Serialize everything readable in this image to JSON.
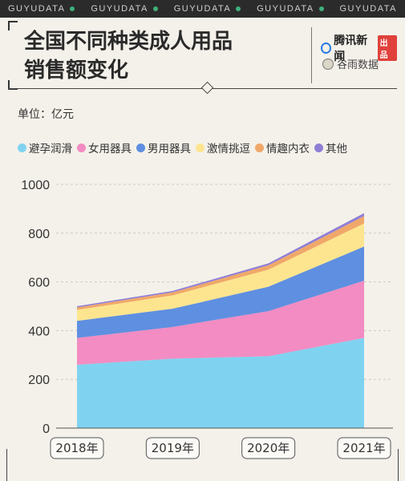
{
  "topbar": {
    "items": [
      "GUYUDATA",
      "GUYUDATA",
      "GUYUDATA",
      "GUYUDATA",
      "GUYUDATA"
    ]
  },
  "header": {
    "title": "全国不同种类成人用品\n销售额变化",
    "brand1": "腾讯新闻",
    "brand1_tag": "出品",
    "brand2": "谷雨数据"
  },
  "chart_data": {
    "type": "area",
    "stacked": true,
    "unit_label": "单位：亿元",
    "x": [
      "2018年",
      "2019年",
      "2020年",
      "2021年"
    ],
    "ylim": [
      0,
      1000
    ],
    "yticks": [
      0,
      200,
      400,
      600,
      800,
      1000
    ],
    "grid": true,
    "legend_position": "top",
    "series": [
      {
        "name": "避孕润滑",
        "color": "#7fd3f0",
        "values": [
          260,
          285,
          295,
          370
        ]
      },
      {
        "name": "女用器具",
        "color": "#f28cc3",
        "values": [
          110,
          130,
          185,
          235
        ]
      },
      {
        "name": "男用器具",
        "color": "#5f8fe0",
        "values": [
          70,
          75,
          100,
          140
        ]
      },
      {
        "name": "激情挑逗",
        "color": "#fde58f",
        "values": [
          45,
          55,
          70,
          95
        ]
      },
      {
        "name": "情趣内衣",
        "color": "#f0a86a",
        "values": [
          10,
          12,
          18,
          30
        ]
      },
      {
        "name": "其他",
        "color": "#8f7fd6",
        "values": [
          5,
          6,
          8,
          12
        ]
      }
    ]
  }
}
